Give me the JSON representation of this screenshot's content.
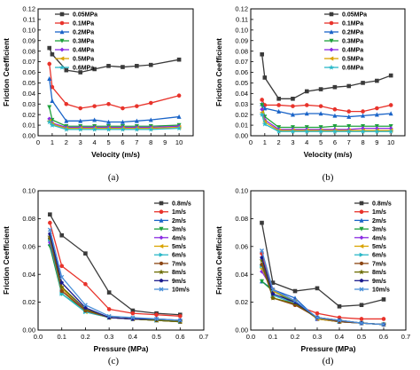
{
  "chart_data": [
    {
      "type": "line",
      "caption": "(a)",
      "xlabel": "Velocity (m/s)",
      "ylabel": "Friction Ceefficient",
      "xlim": [
        0,
        11
      ],
      "ylim": [
        0,
        0.12
      ],
      "xticks": [
        0,
        1,
        2,
        3,
        4,
        5,
        6,
        7,
        8,
        9,
        10
      ],
      "yticks": [
        0.0,
        0.01,
        0.02,
        0.03,
        0.04,
        0.05,
        0.06,
        0.07,
        0.08,
        0.09,
        0.1,
        0.11,
        0.12
      ],
      "ytick_decimals": 2,
      "legend_position": "top-left",
      "x": [
        0.8,
        1,
        2,
        3,
        4,
        5,
        6,
        7,
        8,
        10
      ],
      "series": [
        {
          "name": "0.05MPa",
          "color": "#3a3a3a",
          "marker": "square",
          "values": [
            0.083,
            0.077,
            0.062,
            0.06,
            0.063,
            0.066,
            0.065,
            0.066,
            0.067,
            0.072
          ]
        },
        {
          "name": "0.1MPa",
          "color": "#e8332b",
          "marker": "circle",
          "values": [
            0.068,
            0.046,
            0.03,
            0.026,
            0.028,
            0.03,
            0.026,
            0.028,
            0.031,
            0.038
          ]
        },
        {
          "name": "0.2MPa",
          "color": "#1a64c8",
          "marker": "triangle-up",
          "values": [
            0.054,
            0.033,
            0.014,
            0.014,
            0.015,
            0.013,
            0.013,
            0.014,
            0.015,
            0.018
          ]
        },
        {
          "name": "0.3MPa",
          "color": "#1ea03c",
          "marker": "triangle-down",
          "values": [
            0.027,
            0.015,
            0.009,
            0.009,
            0.009,
            0.009,
            0.009,
            0.009,
            0.009,
            0.01
          ]
        },
        {
          "name": "0.4MPa",
          "color": "#8a2be2",
          "marker": "diamond",
          "values": [
            0.016,
            0.012,
            0.008,
            0.008,
            0.008,
            0.008,
            0.008,
            0.008,
            0.008,
            0.009
          ]
        },
        {
          "name": "0.5MPa",
          "color": "#d9a300",
          "marker": "triangle-left",
          "values": [
            0.014,
            0.011,
            0.007,
            0.007,
            0.007,
            0.007,
            0.007,
            0.007,
            0.007,
            0.008
          ]
        },
        {
          "name": "0.6MPa",
          "color": "#2bb8c8",
          "marker": "star",
          "values": [
            0.013,
            0.01,
            0.006,
            0.006,
            0.006,
            0.006,
            0.006,
            0.006,
            0.006,
            0.007
          ]
        }
      ]
    },
    {
      "type": "line",
      "caption": "(b)",
      "xlabel": "Velocity (m/s)",
      "ylabel": "Friction Ceefficient",
      "xlim": [
        0,
        11
      ],
      "ylim": [
        0,
        0.12
      ],
      "xticks": [
        0,
        1,
        2,
        3,
        4,
        5,
        6,
        7,
        8,
        9,
        10
      ],
      "yticks": [
        0.0,
        0.01,
        0.02,
        0.03,
        0.04,
        0.05,
        0.06,
        0.07,
        0.08,
        0.09,
        0.1,
        0.11,
        0.12
      ],
      "ytick_decimals": 2,
      "legend_position": "top-right",
      "x": [
        0.8,
        1,
        2,
        3,
        4,
        5,
        6,
        7,
        8,
        9,
        10
      ],
      "series": [
        {
          "name": "0.05MPa",
          "color": "#3a3a3a",
          "marker": "square",
          "values": [
            0.077,
            0.055,
            0.035,
            0.035,
            0.042,
            0.044,
            0.046,
            0.047,
            0.05,
            0.052,
            0.057
          ]
        },
        {
          "name": "0.1MPa",
          "color": "#e8332b",
          "marker": "circle",
          "values": [
            0.034,
            0.029,
            0.029,
            0.028,
            0.029,
            0.028,
            0.025,
            0.023,
            0.023,
            0.026,
            0.029
          ]
        },
        {
          "name": "0.2MPa",
          "color": "#1a64c8",
          "marker": "triangle-up",
          "values": [
            0.03,
            0.026,
            0.023,
            0.02,
            0.021,
            0.021,
            0.019,
            0.018,
            0.019,
            0.02,
            0.021
          ]
        },
        {
          "name": "0.3MPa",
          "color": "#1ea03c",
          "marker": "triangle-down",
          "values": [
            0.029,
            0.018,
            0.008,
            0.008,
            0.008,
            0.008,
            0.009,
            0.009,
            0.009,
            0.009,
            0.009
          ]
        },
        {
          "name": "0.4MPa",
          "color": "#8a2be2",
          "marker": "diamond",
          "values": [
            0.025,
            0.015,
            0.006,
            0.006,
            0.006,
            0.006,
            0.006,
            0.006,
            0.007,
            0.007,
            0.007
          ]
        },
        {
          "name": "0.5MPa",
          "color": "#d9a300",
          "marker": "triangle-left",
          "values": [
            0.022,
            0.013,
            0.005,
            0.005,
            0.005,
            0.005,
            0.005,
            0.005,
            0.005,
            0.005,
            0.005
          ]
        },
        {
          "name": "0.6MPa",
          "color": "#2bb8c8",
          "marker": "star",
          "values": [
            0.02,
            0.011,
            0.004,
            0.004,
            0.004,
            0.004,
            0.004,
            0.004,
            0.004,
            0.004,
            0.004
          ]
        }
      ]
    },
    {
      "type": "line",
      "caption": "(c)",
      "xlabel": "Pressure (MPa)",
      "ylabel": "Friction Ceefficient",
      "xlim": [
        0,
        0.7
      ],
      "ylim": [
        0,
        0.1
      ],
      "xticks": [
        0.0,
        0.1,
        0.2,
        0.3,
        0.4,
        0.5,
        0.6,
        0.7
      ],
      "yticks": [
        0.0,
        0.02,
        0.04,
        0.06,
        0.08,
        0.1
      ],
      "ytick_decimals": 2,
      "legend_position": "top-right",
      "x": [
        0.05,
        0.1,
        0.2,
        0.3,
        0.4,
        0.5,
        0.6
      ],
      "series": [
        {
          "name": "0.8m/s",
          "color": "#3a3a3a",
          "marker": "square",
          "values": [
            0.083,
            0.068,
            0.055,
            0.027,
            0.014,
            0.012,
            0.011
          ]
        },
        {
          "name": "1m/s",
          "color": "#e8332b",
          "marker": "circle",
          "values": [
            0.077,
            0.046,
            0.033,
            0.015,
            0.012,
            0.011,
            0.01
          ]
        },
        {
          "name": "2m/s",
          "color": "#1a64c8",
          "marker": "triangle-up",
          "values": [
            0.062,
            0.03,
            0.014,
            0.009,
            0.008,
            0.007,
            0.006
          ]
        },
        {
          "name": "3m/s",
          "color": "#1ea03c",
          "marker": "triangle-down",
          "values": [
            0.06,
            0.026,
            0.014,
            0.009,
            0.008,
            0.007,
            0.006
          ]
        },
        {
          "name": "4m/s",
          "color": "#8a2be2",
          "marker": "diamond",
          "values": [
            0.063,
            0.028,
            0.015,
            0.009,
            0.008,
            0.007,
            0.006
          ]
        },
        {
          "name": "5m/s",
          "color": "#d9a300",
          "marker": "triangle-left",
          "values": [
            0.066,
            0.03,
            0.013,
            0.009,
            0.008,
            0.007,
            0.006
          ]
        },
        {
          "name": "6m/s",
          "color": "#2bb8c8",
          "marker": "triangle-right",
          "values": [
            0.065,
            0.026,
            0.013,
            0.009,
            0.008,
            0.007,
            0.006
          ]
        },
        {
          "name": "7m/s",
          "color": "#8b4513",
          "marker": "hexagon",
          "values": [
            0.066,
            0.028,
            0.014,
            0.009,
            0.008,
            0.007,
            0.006
          ]
        },
        {
          "name": "8m/s",
          "color": "#6b6b00",
          "marker": "star",
          "values": [
            0.067,
            0.031,
            0.015,
            0.009,
            0.008,
            0.007,
            0.006
          ]
        },
        {
          "name": "9m/s",
          "color": "#1a1a8c",
          "marker": "pentagon",
          "values": [
            0.069,
            0.034,
            0.016,
            0.009,
            0.008,
            0.008,
            0.007
          ]
        },
        {
          "name": "10m/s",
          "color": "#4a90d9",
          "marker": "x",
          "values": [
            0.072,
            0.038,
            0.018,
            0.01,
            0.009,
            0.008,
            0.007
          ]
        }
      ]
    },
    {
      "type": "line",
      "caption": "(d)",
      "xlabel": "Pressure (MPa)",
      "ylabel": "Friction Ceefficient",
      "xlim": [
        0,
        0.7
      ],
      "ylim": [
        0,
        0.1
      ],
      "xticks": [
        0.0,
        0.1,
        0.2,
        0.3,
        0.4,
        0.5,
        0.6,
        0.7
      ],
      "yticks": [
        0.0,
        0.02,
        0.04,
        0.06,
        0.08,
        0.1
      ],
      "ytick_decimals": 2,
      "legend_position": "top-right",
      "x": [
        0.05,
        0.1,
        0.2,
        0.3,
        0.4,
        0.5,
        0.6
      ],
      "series": [
        {
          "name": "0.8m/s",
          "color": "#3a3a3a",
          "marker": "square",
          "values": [
            0.077,
            0.034,
            0.028,
            0.03,
            0.017,
            0.018,
            0.022
          ]
        },
        {
          "name": "1m/s",
          "color": "#e8332b",
          "marker": "circle",
          "values": [
            0.055,
            0.029,
            0.018,
            0.012,
            0.009,
            0.008,
            0.008
          ]
        },
        {
          "name": "2m/s",
          "color": "#1a64c8",
          "marker": "triangle-up",
          "values": [
            0.035,
            0.029,
            0.023,
            0.008,
            0.006,
            0.005,
            0.004
          ]
        },
        {
          "name": "3m/s",
          "color": "#1ea03c",
          "marker": "triangle-down",
          "values": [
            0.035,
            0.028,
            0.02,
            0.008,
            0.006,
            0.005,
            0.004
          ]
        },
        {
          "name": "4m/s",
          "color": "#8a2be2",
          "marker": "diamond",
          "values": [
            0.042,
            0.029,
            0.021,
            0.008,
            0.006,
            0.005,
            0.004
          ]
        },
        {
          "name": "5m/s",
          "color": "#d9a300",
          "marker": "triangle-left",
          "values": [
            0.044,
            0.028,
            0.021,
            0.008,
            0.006,
            0.005,
            0.004
          ]
        },
        {
          "name": "6m/s",
          "color": "#2bb8c8",
          "marker": "triangle-right",
          "values": [
            0.046,
            0.025,
            0.019,
            0.009,
            0.006,
            0.005,
            0.004
          ]
        },
        {
          "name": "7m/s",
          "color": "#8b4513",
          "marker": "hexagon",
          "values": [
            0.047,
            0.023,
            0.018,
            0.009,
            0.006,
            0.005,
            0.004
          ]
        },
        {
          "name": "8m/s",
          "color": "#6b6b00",
          "marker": "star",
          "values": [
            0.05,
            0.023,
            0.019,
            0.009,
            0.007,
            0.005,
            0.004
          ]
        },
        {
          "name": "9m/s",
          "color": "#1a1a8c",
          "marker": "pentagon",
          "values": [
            0.052,
            0.026,
            0.02,
            0.009,
            0.007,
            0.005,
            0.004
          ]
        },
        {
          "name": "10m/s",
          "color": "#4a90d9",
          "marker": "x",
          "values": [
            0.057,
            0.029,
            0.021,
            0.009,
            0.007,
            0.005,
            0.004
          ]
        }
      ]
    }
  ]
}
